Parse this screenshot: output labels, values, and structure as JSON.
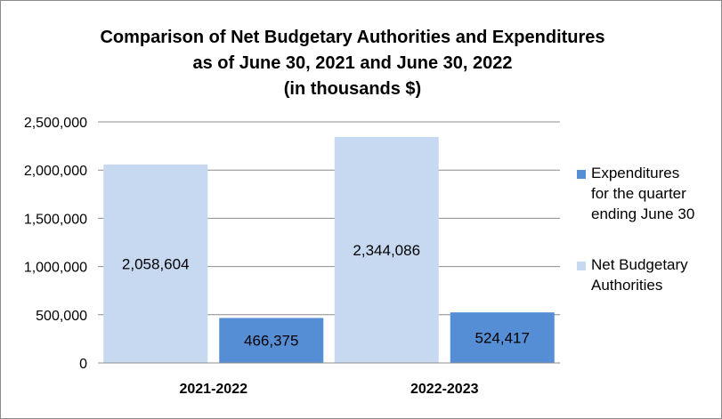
{
  "chart_data": {
    "type": "bar",
    "title_lines": [
      "Comparison of Net Budgetary Authorities and Expenditures",
      "as of June 30, 2021 and June 30, 2022",
      "(in thousands $)"
    ],
    "categories": [
      "2021-2022",
      "2022-2023"
    ],
    "series": [
      {
        "name": "Net Budgetary Authorities",
        "values": [
          2058604,
          2344086
        ],
        "labels": [
          "2,058,604",
          "2,344,086"
        ],
        "color": "#c6d9f1"
      },
      {
        "name": "Expenditures for the quarter ending June 30",
        "values": [
          466375,
          524417
        ],
        "labels": [
          "466,375",
          "524,417"
        ],
        "color": "#558ed5"
      }
    ],
    "legend_lines": [
      [
        "Expenditures",
        "for the quarter",
        "ending June 30"
      ],
      [
        "Net Budgetary",
        "Authorities"
      ]
    ],
    "legend_position": "right",
    "ylim": [
      0,
      2500000
    ],
    "yticks": [
      0,
      500000,
      1000000,
      1500000,
      2000000,
      2500000
    ],
    "ytick_labels": [
      "0",
      "500,000",
      "1,000,000",
      "1,500,000",
      "2,000,000",
      "2,500,000"
    ],
    "grid": true,
    "gridline_color": "#8c8c8c"
  }
}
